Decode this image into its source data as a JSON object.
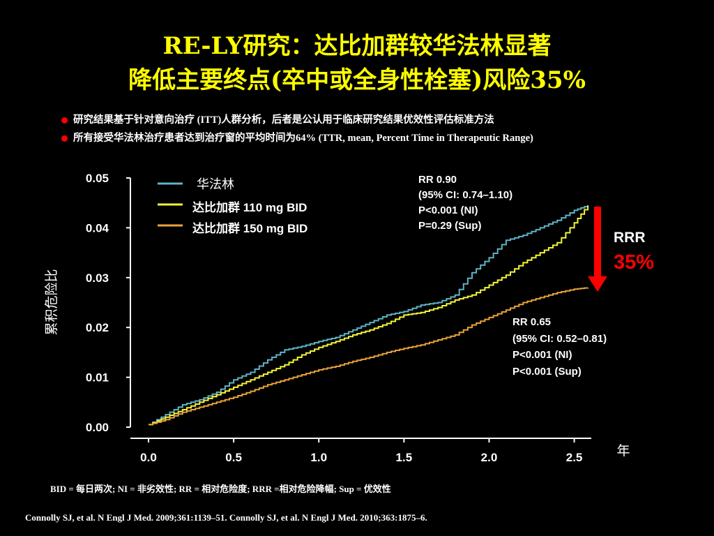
{
  "title": {
    "line1": "RE-LY研究：达比加群较华法林显著",
    "line2": "降低主要终点(卒中或全身性栓塞)风险35%"
  },
  "bullets": [
    "研究结果基于针对意向治疗 (ITT)人群分析，后者是公认用于临床研究结果优效性评估标准方法",
    "所有接受华法林治疗患者达到治疗窗的平均时间为64% (TTR, mean, Percent Time in Therapeutic Range)"
  ],
  "annotations": {
    "rr110": [
      "RR 0.90",
      "(95% CI: 0.74–1.10)",
      "P<0.001 (NI)",
      "P=0.29 (Sup)"
    ],
    "rr150": [
      "RR 0.65",
      "(95% CI: 0.52–0.81)",
      "P<0.001 (NI)",
      "P<0.001 (Sup)"
    ],
    "rrr_label": "RRR",
    "rrr_value": "35%"
  },
  "footnotes": {
    "abbrev": "BID = 每日两次; NI = 非劣效性; RR = 相对危险度; RRR =相对危险降幅; Sup = 优效性",
    "refs": "Connolly SJ, et al. N Engl J Med. 2009;361:1139–51. Connolly SJ, et al. N Engl J Med. 2010;363:1875–6."
  },
  "colors": {
    "warfarin": "#5fb3c6",
    "dabi110": "#f5f53a",
    "dabi150": "#e8a33b",
    "arrow": "#ff0000",
    "title": "#ffff00"
  },
  "chart_data": {
    "type": "line",
    "xlabel": "年",
    "ylabel": "累积危险比",
    "xlim": [
      0,
      2.6
    ],
    "ylim": [
      0,
      0.05
    ],
    "x_ticks": [
      "0.0",
      "0.5",
      "1.0",
      "1.5",
      "2.0",
      "2.5"
    ],
    "y_ticks": [
      "0.00",
      "0.01",
      "0.02",
      "0.03",
      "0.04",
      "0.05"
    ],
    "grid": false,
    "legend": "top-left",
    "series": [
      {
        "name": "华法林",
        "x": [
          0,
          0.1,
          0.2,
          0.3,
          0.4,
          0.5,
          0.6,
          0.7,
          0.8,
          0.9,
          1.0,
          1.1,
          1.2,
          1.3,
          1.4,
          1.5,
          1.6,
          1.7,
          1.8,
          1.9,
          2.0,
          2.1,
          2.2,
          2.3,
          2.4,
          2.5,
          2.58
        ],
        "y": [
          0.0005,
          0.0025,
          0.0045,
          0.0055,
          0.007,
          0.0095,
          0.011,
          0.0135,
          0.0155,
          0.0162,
          0.0172,
          0.018,
          0.0195,
          0.021,
          0.0225,
          0.0232,
          0.0245,
          0.025,
          0.0265,
          0.031,
          0.034,
          0.0375,
          0.0385,
          0.04,
          0.0415,
          0.0435,
          0.0445
        ]
      },
      {
        "name": "达比加群 110 mg BID",
        "x": [
          0,
          0.1,
          0.2,
          0.3,
          0.4,
          0.5,
          0.6,
          0.7,
          0.8,
          0.9,
          1.0,
          1.1,
          1.2,
          1.3,
          1.4,
          1.5,
          1.6,
          1.7,
          1.8,
          1.9,
          2.0,
          2.1,
          2.2,
          2.3,
          2.4,
          2.5,
          2.58
        ],
        "y": [
          0.0005,
          0.002,
          0.0035,
          0.005,
          0.0065,
          0.008,
          0.0095,
          0.011,
          0.0125,
          0.0145,
          0.016,
          0.0172,
          0.0185,
          0.0195,
          0.0208,
          0.0225,
          0.023,
          0.024,
          0.0255,
          0.0265,
          0.0285,
          0.0305,
          0.033,
          0.035,
          0.037,
          0.041,
          0.0445
        ]
      },
      {
        "name": "达比加群 150 mg BID",
        "x": [
          0,
          0.1,
          0.2,
          0.3,
          0.4,
          0.5,
          0.6,
          0.7,
          0.8,
          0.9,
          1.0,
          1.1,
          1.2,
          1.3,
          1.4,
          1.5,
          1.6,
          1.7,
          1.8,
          1.9,
          2.0,
          2.1,
          2.2,
          2.3,
          2.4,
          2.5,
          2.58
        ],
        "y": [
          0.0005,
          0.0015,
          0.003,
          0.004,
          0.005,
          0.006,
          0.0072,
          0.0085,
          0.0095,
          0.0105,
          0.0115,
          0.0122,
          0.0132,
          0.014,
          0.015,
          0.0158,
          0.0165,
          0.0175,
          0.0185,
          0.0205,
          0.022,
          0.0235,
          0.025,
          0.026,
          0.027,
          0.0277,
          0.028
        ]
      }
    ]
  }
}
